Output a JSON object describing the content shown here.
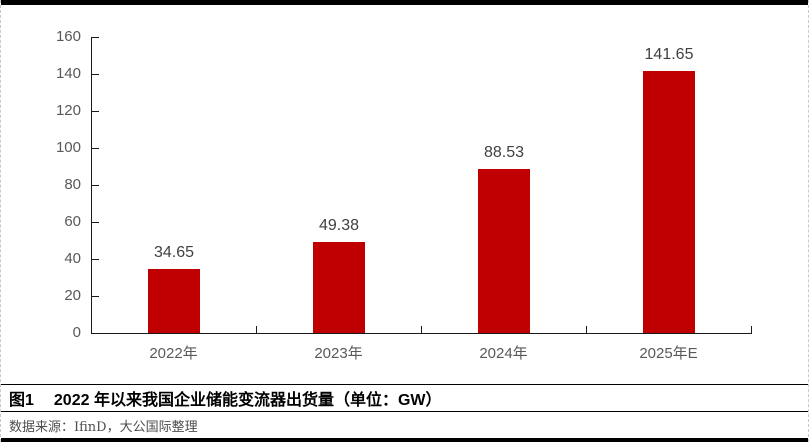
{
  "caption": {
    "figure_label": "图1",
    "title": "2022 年以来我国企业储能变流器出货量（单位：GW）"
  },
  "source": {
    "text": "数据来源：IfinD，大公国际整理"
  },
  "chart_data": {
    "type": "bar",
    "categories": [
      "2022年",
      "2023年",
      "2024年",
      "2025年E"
    ],
    "values": [
      34.65,
      49.38,
      88.53,
      141.65
    ],
    "value_labels": [
      "34.65",
      "49.38",
      "88.53",
      "141.65"
    ],
    "title": "2022 年以来我国企业储能变流器出货量",
    "unit": "GW",
    "xlabel": "",
    "ylabel": "",
    "ylim": [
      0,
      160
    ],
    "ytick_step": 20,
    "ytick_labels": [
      "0",
      "20",
      "40",
      "60",
      "80",
      "100",
      "120",
      "140",
      "160"
    ],
    "grid": false,
    "legend": "none",
    "bar_color": "#c00000",
    "axis_color": "#1a1a1a",
    "tick_label_color": "#595959",
    "data_label_color": "#404040"
  }
}
